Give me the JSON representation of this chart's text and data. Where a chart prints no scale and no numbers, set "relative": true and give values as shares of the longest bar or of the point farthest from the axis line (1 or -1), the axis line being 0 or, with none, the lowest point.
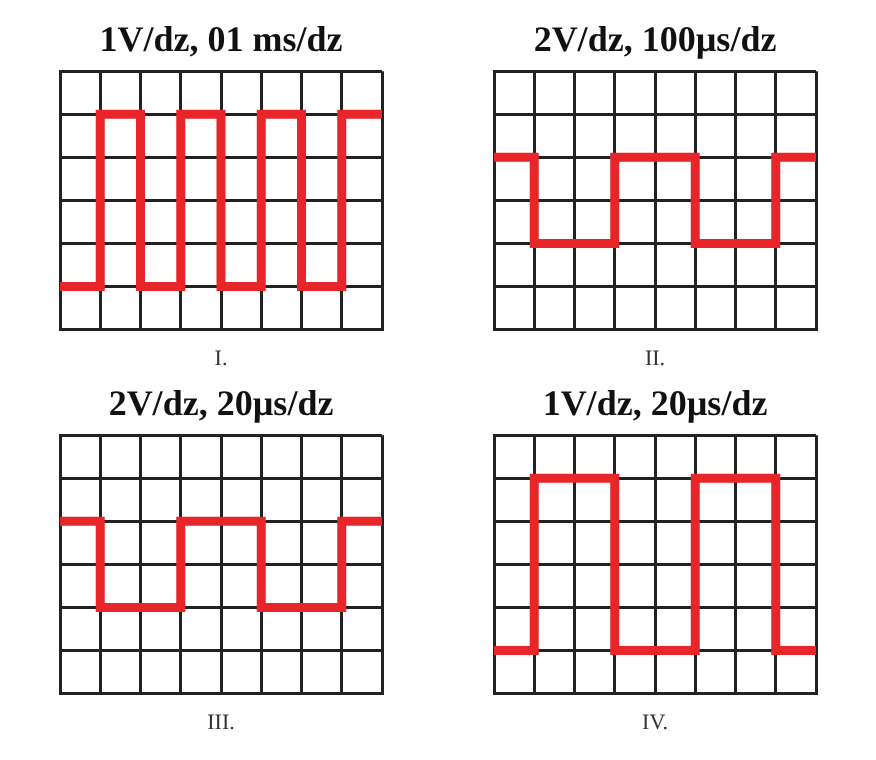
{
  "chart_data": [
    {
      "type": "step",
      "title": "1V/dz, 01 ms/dz",
      "annotations": [
        "I."
      ],
      "categories": [
        null,
        null,
        null,
        null,
        null,
        null,
        null,
        null,
        null
      ],
      "values": [
        0,
        1,
        0,
        1,
        0,
        1,
        0,
        1,
        1
      ],
      "color": "#e8262a",
      "relative": true,
      "grid": true,
      "tick_labels": false
    },
    {
      "type": "step",
      "title": "2V/dz, 100µs/dz",
      "annotations": [
        "II."
      ],
      "categories": [
        null,
        null,
        null,
        null,
        null,
        null,
        null,
        null,
        null
      ],
      "values": [
        1,
        0,
        0,
        1,
        1,
        0,
        0,
        1,
        1
      ],
      "color": "#e8262a",
      "relative": true,
      "grid": true,
      "tick_labels": false
    },
    {
      "type": "step",
      "title": "2V/dz, 20µs/dz",
      "annotations": [
        "III."
      ],
      "categories": [
        null,
        null,
        null,
        null,
        null,
        null,
        null,
        null,
        null
      ],
      "values": [
        1,
        0,
        0,
        1,
        1,
        0,
        0,
        1,
        1
      ],
      "color": "#e8262a",
      "relative": true,
      "grid": true,
      "tick_labels": false
    },
    {
      "type": "step",
      "title": "1V/dz, 20µs/dz",
      "annotations": [
        "IV."
      ],
      "categories": [
        null,
        null,
        null,
        null,
        null,
        null,
        null,
        null,
        null
      ],
      "values": [
        0,
        1,
        1,
        0,
        0,
        1,
        1,
        0,
        0
      ],
      "color": "#e8262a",
      "relative": true,
      "grid": true,
      "tick_labels": false
    }
  ]
}
